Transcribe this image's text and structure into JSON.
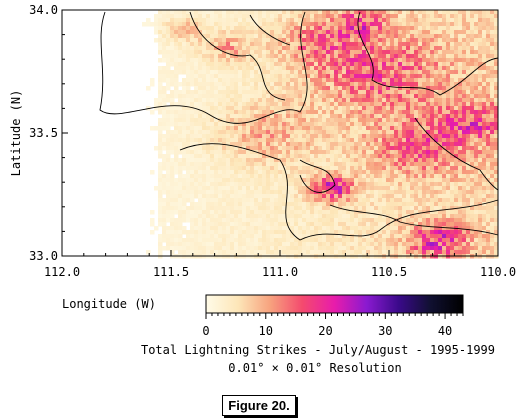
{
  "chart_data": {
    "type": "heatmap",
    "title": "Total Lightning Strikes - July/August - 1995-1999",
    "subtitle": "0.01° × 0.01° Resolution",
    "xlabel": "Longitude (W)",
    "ylabel": "Latitude (N)",
    "x_ticks": [
      "112.0",
      "111.5",
      "111.0",
      "110.5",
      "110.0"
    ],
    "y_ticks": [
      "34.0",
      "33.5",
      "33.0"
    ],
    "xlim": [
      112.0,
      110.0
    ],
    "ylim": [
      33.0,
      34.0
    ],
    "colorbar": {
      "ticks": [
        "0",
        "10",
        "20",
        "30",
        "40"
      ],
      "range": [
        0,
        43
      ],
      "stops": [
        "#fffbe8",
        "#fde6b8",
        "#f7a27e",
        "#f44a6e",
        "#e81cab",
        "#8a1ad0",
        "#3a0a8a",
        "#101030",
        "#000000"
      ]
    },
    "grid": false,
    "legend": "none"
  },
  "figure": {
    "label": "Figure 20."
  }
}
